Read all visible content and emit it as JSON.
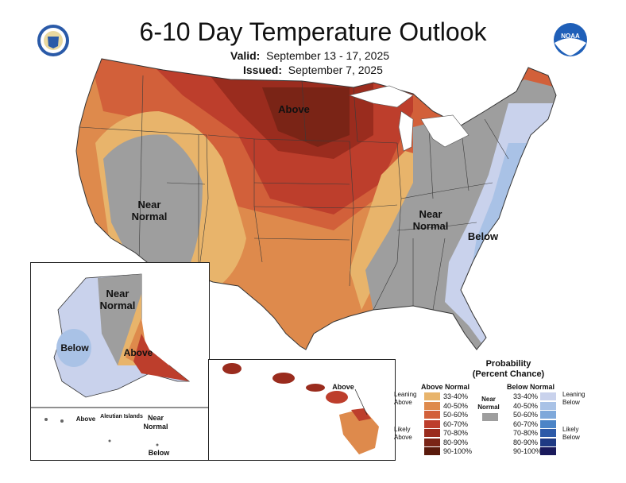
{
  "header": {
    "title": "6-10 Day Temperature Outlook",
    "valid_label": "Valid:",
    "valid_dates": "September 13 - 17, 2025",
    "issued_label": "Issued:",
    "issued_date": "September 7, 2025"
  },
  "logos": {
    "left": "commerce-seal",
    "right_text": "NOAA"
  },
  "map": {
    "labels": {
      "above": "Above",
      "near_normal_west": [
        "Near",
        "Normal"
      ],
      "near_normal_east": [
        "Near",
        "Normal"
      ],
      "below": "Below"
    },
    "alaska": {
      "near_normal": [
        "Near",
        "Normal"
      ],
      "below": "Below",
      "above": "Above",
      "aleutian_title": "Aleutian Islands",
      "aleutian_above": "Above",
      "aleutian_near": [
        "Near",
        "Normal"
      ],
      "aleutian_below": "Below"
    },
    "hawaii": {
      "above": "Above"
    }
  },
  "legend": {
    "title": "Probability",
    "subtitle": "(Percent Chance)",
    "above_header": "Above Normal",
    "below_header": "Below Normal",
    "near_label": [
      "Near",
      "Normal"
    ],
    "leaning_above": [
      "Leaning",
      "Above"
    ],
    "likely_above": [
      "Likely",
      "Above"
    ],
    "leaning_below": [
      "Leaning",
      "Below"
    ],
    "likely_below": [
      "Likely",
      "Below"
    ],
    "ranges": [
      "33-40%",
      "40-50%",
      "50-60%",
      "60-70%",
      "70-80%",
      "80-90%",
      "90-100%"
    ],
    "above_colors": [
      "#e8b46b",
      "#de8a4c",
      "#d2603a",
      "#bd3e2c",
      "#9a2c1e",
      "#7a2416",
      "#5a1a0c"
    ],
    "below_colors": [
      "#c9d2ec",
      "#a9c2e6",
      "#7ea8da",
      "#4b84c7",
      "#2d5aa8",
      "#1f3a84",
      "#1a1a5c"
    ],
    "near_color": "#9e9e9e"
  }
}
